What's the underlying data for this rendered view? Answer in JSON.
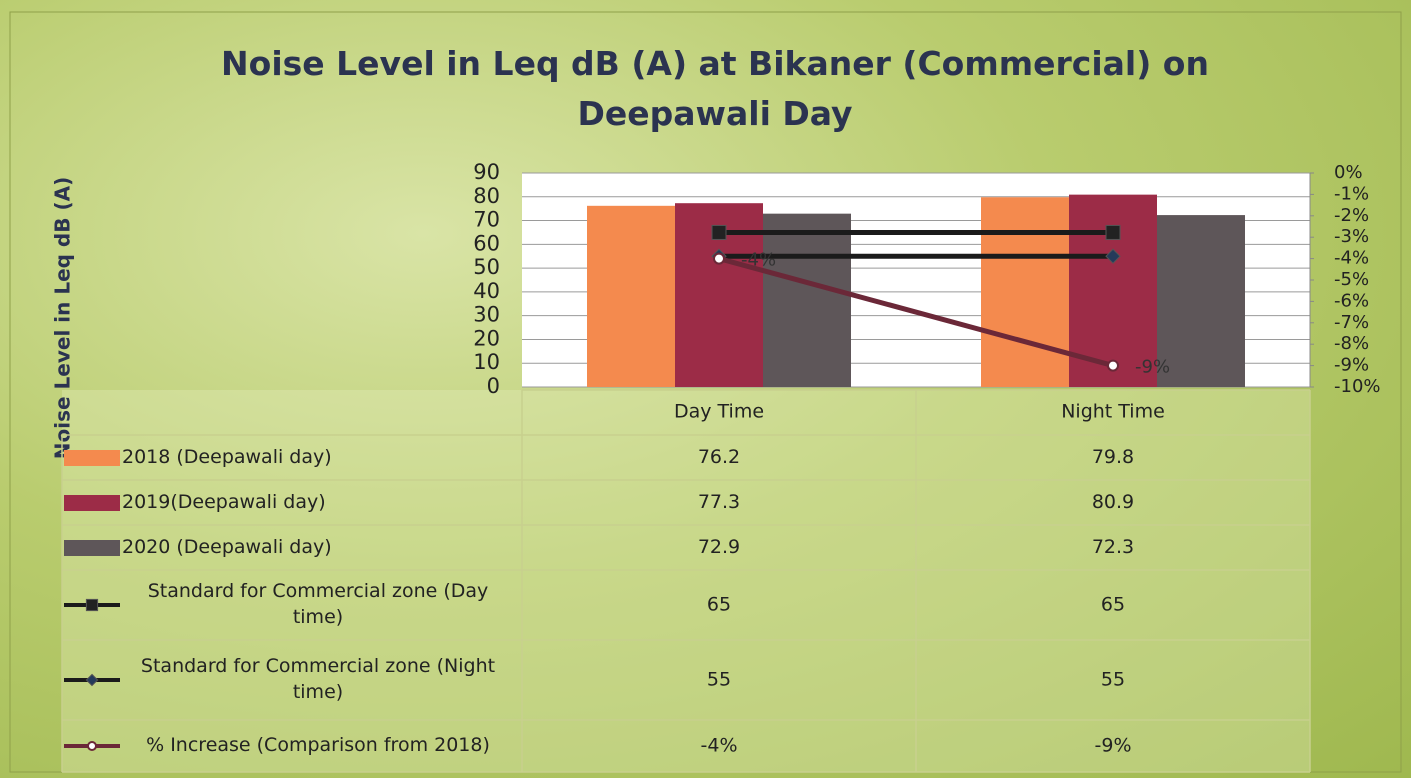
{
  "chart_data": {
    "type": "bar",
    "title": "Noise Level in Leq dB (A) at Bikaner (Commercial) on Deepawali Day",
    "ylabel": "Noise Level in Leq dB (A)",
    "categories": [
      "Day Time",
      "Night Time"
    ],
    "series": [
      {
        "name": "2018 (Deepawali day)",
        "type": "bar",
        "color": "#f48a4e",
        "values": [
          76.2,
          79.8
        ]
      },
      {
        "name": "2019(Deepawali day)",
        "type": "bar",
        "color": "#9c2c47",
        "values": [
          77.3,
          80.9
        ]
      },
      {
        "name": "2020 (Deepawali day)",
        "type": "bar",
        "color": "#5e5659",
        "values": [
          72.9,
          72.3
        ]
      },
      {
        "name": "Standard for Commercial zone (Day time)",
        "type": "line",
        "marker": "square",
        "color": "#1b1b1b",
        "values": [
          65,
          65
        ]
      },
      {
        "name": "Standard for Commercial zone (Night time)",
        "type": "line",
        "marker": "diamond",
        "color": "#1b1b1b",
        "values": [
          55,
          55
        ]
      },
      {
        "name": "% Increase (Comparison from 2018)",
        "type": "line",
        "marker": "circle",
        "color": "#6b2838",
        "axis": "y2",
        "values": [
          -4,
          -9
        ],
        "value_labels": [
          "-4%",
          "-9%"
        ]
      }
    ],
    "ylim": [
      0,
      90
    ],
    "yticks": [
      0,
      10,
      20,
      30,
      40,
      50,
      60,
      70,
      80,
      90
    ],
    "y2lim": [
      -10,
      0
    ],
    "y2ticks": [
      {
        "value": 0,
        "label": "0%"
      },
      {
        "value": -1,
        "label": "-1%"
      },
      {
        "value": -2,
        "label": "-2%"
      },
      {
        "value": -3,
        "label": "-3%"
      },
      {
        "value": -4,
        "label": "-4%"
      },
      {
        "value": -5,
        "label": "-5%"
      },
      {
        "value": -6,
        "label": "-6%"
      },
      {
        "value": -7,
        "label": "-7%"
      },
      {
        "value": -8,
        "label": "-8%"
      },
      {
        "value": -9,
        "label": "-9%"
      },
      {
        "value": -10,
        "label": "-10%"
      }
    ],
    "grid": true
  }
}
